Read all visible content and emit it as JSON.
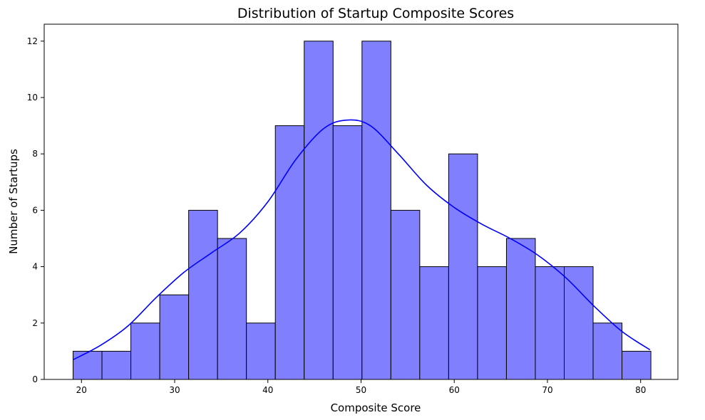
{
  "chart_data": {
    "type": "bar",
    "title": "Distribution of Startup Composite Scores",
    "xlabel": "Composite Score",
    "ylabel": "Number of Startups",
    "bin_start": 19.1,
    "bin_width": 3.1,
    "counts": [
      1,
      1,
      2,
      3,
      6,
      5,
      2,
      9,
      12,
      9,
      12,
      6,
      4,
      8,
      4,
      5,
      4,
      4,
      2,
      1
    ],
    "xlim": [
      16,
      84
    ],
    "ylim": [
      0,
      12.6
    ],
    "x_ticks": [
      20,
      30,
      40,
      50,
      60,
      70,
      80
    ],
    "y_ticks": [
      0,
      2,
      4,
      6,
      8,
      10,
      12
    ],
    "kde_x": [
      19.1,
      22,
      25,
      28,
      31,
      34,
      37,
      40,
      43,
      46,
      48.5,
      51,
      54,
      57,
      60,
      63,
      66,
      69,
      72,
      75,
      78,
      81
    ],
    "kde_y": [
      0.7,
      1.2,
      1.9,
      2.9,
      3.8,
      4.5,
      5.2,
      6.3,
      7.8,
      8.9,
      9.2,
      9.0,
      8.0,
      6.9,
      6.1,
      5.5,
      5.0,
      4.4,
      3.6,
      2.6,
      1.7,
      1.05
    ],
    "colors": {
      "bar_fill": "#8080ff",
      "bar_edge": "#000000",
      "kde": "#0000ff"
    },
    "grid": false,
    "legend": "none"
  }
}
